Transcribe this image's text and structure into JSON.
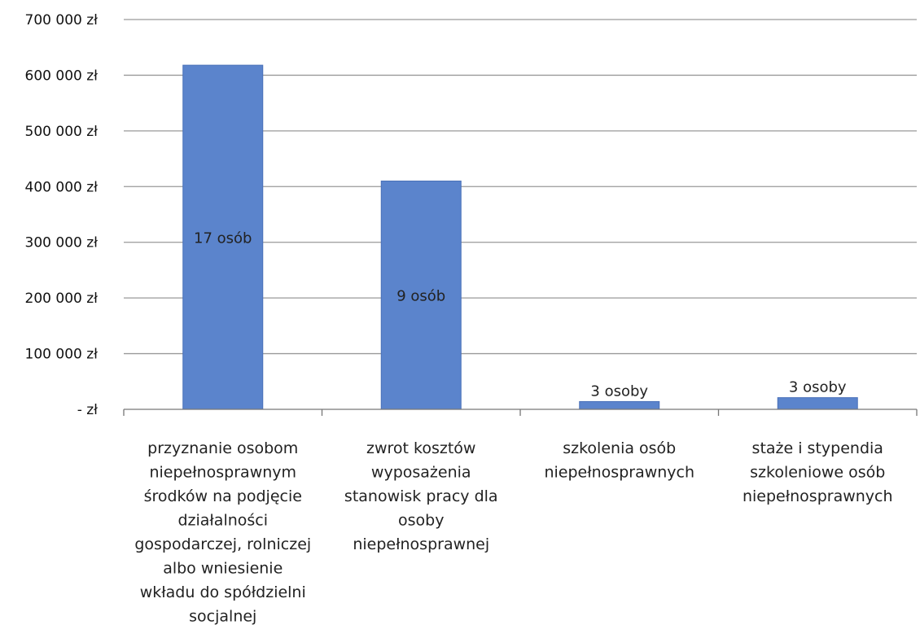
{
  "chart_data": {
    "type": "bar",
    "categories": [
      [
        "przyznanie osobom",
        "niepełnosprawnym",
        "środków na podjęcie",
        "działalności",
        "gospodarczej, rolniczej",
        "albo wniesienie",
        "wkładu do spółdzielni",
        "socjalnej"
      ],
      [
        "zwrot kosztów",
        "wyposażenia",
        "stanowisk pracy dla",
        "osoby",
        "niepełnosprawnej"
      ],
      [
        "szkolenia osób",
        "niepełnosprawnych"
      ],
      [
        "staże i stypendia",
        "szkoleniowe osób",
        "niepełnosprawnych"
      ]
    ],
    "values": [
      618000,
      410000,
      14000,
      21000
    ],
    "data_labels": [
      "17 osób",
      "9 osób",
      "3 osoby",
      "3 osoby"
    ],
    "ylim": [
      0,
      700000
    ],
    "y_ticks": [
      {
        "value": 0,
        "label": "- zł"
      },
      {
        "value": 100000,
        "label": "100 000 zł"
      },
      {
        "value": 200000,
        "label": "200 000 zł"
      },
      {
        "value": 300000,
        "label": "300 000 zł"
      },
      {
        "value": 400000,
        "label": "400 000 zł"
      },
      {
        "value": 500000,
        "label": "500 000 zł"
      },
      {
        "value": 600000,
        "label": "600 000 zł"
      },
      {
        "value": 700000,
        "label": "700 000 zł"
      }
    ],
    "grid": true,
    "bar_color": "#5b84cc",
    "bar_edge_color": "#4a70b8",
    "grid_color": "#9a9a9a"
  }
}
